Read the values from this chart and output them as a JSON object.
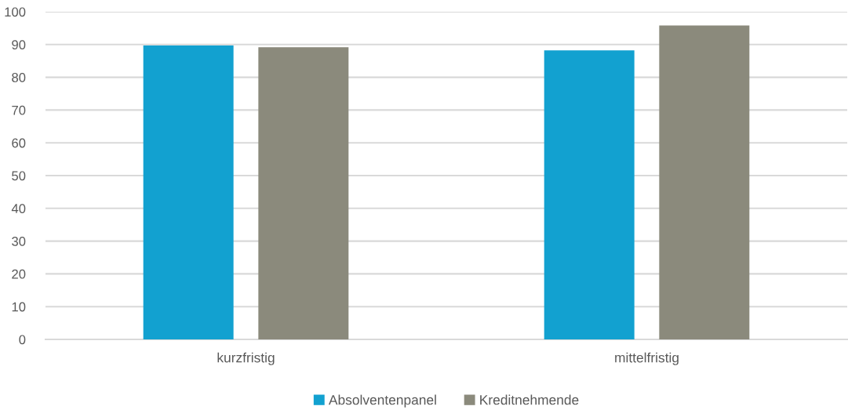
{
  "chart_data": {
    "type": "bar",
    "categories": [
      "kurzfristig",
      "mittelfristig"
    ],
    "series": [
      {
        "name": "Absolventenpanel",
        "color": "#12a1d0",
        "values": [
          89.7,
          88.2
        ]
      },
      {
        "name": "Kreditnehmende",
        "color": "#8b8a7c",
        "values": [
          89.2,
          95.8
        ]
      }
    ],
    "ylim": [
      0,
      100
    ],
    "yticks": [
      0,
      10,
      20,
      30,
      40,
      50,
      60,
      70,
      80,
      90,
      100
    ],
    "grid": "y",
    "legend": "bottom"
  }
}
